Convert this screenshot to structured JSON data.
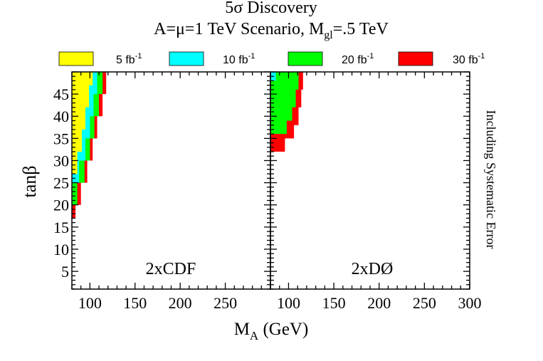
{
  "chart_data": {
    "type": "area",
    "title": "5σ Discovery",
    "subtitle_prefix": "A=μ=1 TeV Scenario, M",
    "subtitle_sub": "gl",
    "subtitle_suffix": "=.5 TeV",
    "xlabel_main": "M",
    "xlabel_sub": "A",
    "xlabel_suffix": " (GeV)",
    "ylabel": "tanβ",
    "side_note": "Including Systematic Error",
    "xlim": [
      80,
      300
    ],
    "ylim": [
      1,
      50
    ],
    "x_ticks_left": [
      "100",
      "150",
      "200",
      "250"
    ],
    "x_ticks_right": [
      "100",
      "150",
      "200",
      "250",
      "300"
    ],
    "y_ticks": [
      "5",
      "10",
      "15",
      "20",
      "25",
      "30",
      "35",
      "40",
      "45"
    ],
    "legend": [
      {
        "label": "5 fb",
        "sup": "-1",
        "color": "#ffff00"
      },
      {
        "label": "10 fb",
        "sup": "-1",
        "color": "#00ffff"
      },
      {
        "label": "20 fb",
        "sup": "-1",
        "color": "#00ff00"
      },
      {
        "label": "30 fb",
        "sup": "-1",
        "color": "#ff0000"
      }
    ],
    "panels": [
      {
        "name": "2xCDF",
        "regions": [
          {
            "lumi": "30 fb-1",
            "color": "#ff0000",
            "tanb": [
              15,
              17,
              20,
              25,
              30,
              35,
              40,
              45,
              50
            ],
            "ma": [
              80,
              84,
              90,
              97,
              103,
              108,
              114,
              118,
              122
            ]
          },
          {
            "lumi": "20 fb-1",
            "color": "#00ff00",
            "tanb": [
              17,
              20,
              25,
              30,
              35,
              40,
              45,
              50
            ],
            "ma": [
              80,
              86,
              94,
              100,
              105,
              110,
              114,
              118
            ]
          },
          {
            "lumi": "10 fb-1",
            "color": "#00ffff",
            "tanb": [
              20,
              25,
              30,
              35,
              40,
              45,
              50
            ],
            "ma": [
              80,
              88,
              95,
              100,
              104,
              108,
              112
            ]
          },
          {
            "lumi": "5 fb-1",
            "color": "#ffff00",
            "tanb": [
              22,
              27,
              32,
              37,
              42,
              47,
              50
            ],
            "ma": [
              80,
              86,
              91,
              95,
              99,
              103,
              105
            ]
          }
        ]
      },
      {
        "name": "2xDØ",
        "regions": [
          {
            "lumi": "30 fb-1",
            "color": "#ff0000",
            "tanb": [
              30,
              32,
              35,
              38,
              42,
              46,
              50
            ],
            "ma": [
              80,
              96,
              106,
              111,
              114,
              116,
              118
            ]
          },
          {
            "lumi": "20 fb-1",
            "color": "#00ff00",
            "tanb": [
              33,
              36,
              39,
              42,
              46,
              50
            ],
            "ma": [
              80,
              98,
              104,
              108,
              111,
              113
            ]
          },
          {
            "lumi": "10 fb-1",
            "color": "#00ffff",
            "tanb": [
              46,
              48,
              50
            ],
            "ma": [
              80,
              86,
              90
            ]
          }
        ]
      }
    ]
  }
}
